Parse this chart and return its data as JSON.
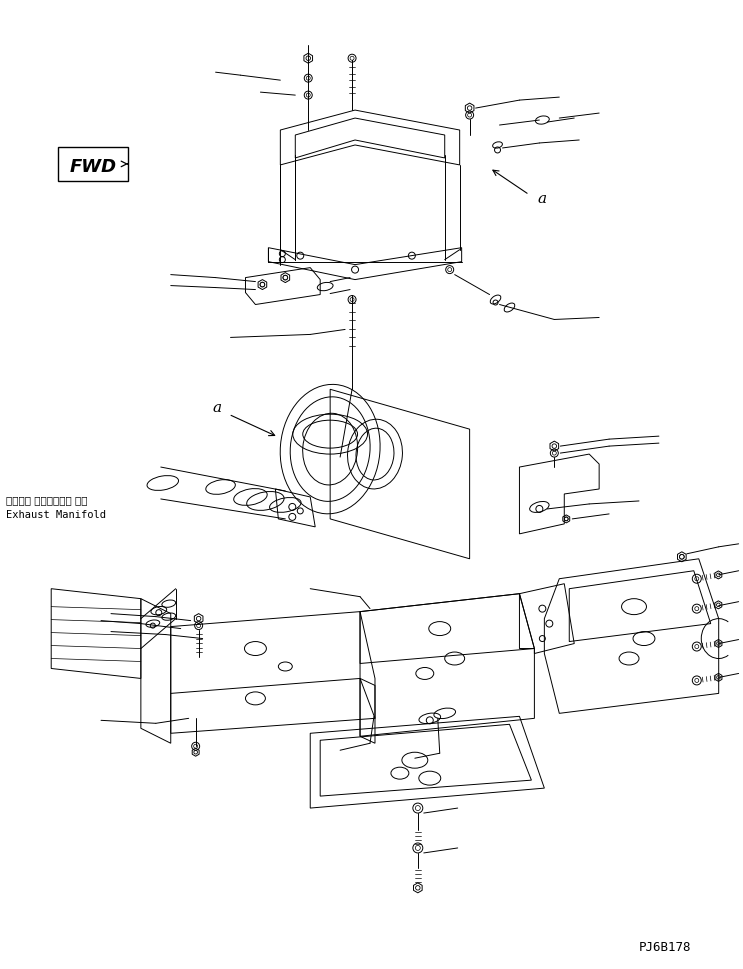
{
  "bg_color": "#ffffff",
  "line_color": "#000000",
  "fig_width": 7.43,
  "fig_height": 9.7,
  "title_code": "PJ6B178",
  "fwd_label": "FWD",
  "label_a": "a",
  "exhaust_label_jp": "エキゾー ストマニホー ルド",
  "exhaust_label_en": "Exhaust Manifold"
}
